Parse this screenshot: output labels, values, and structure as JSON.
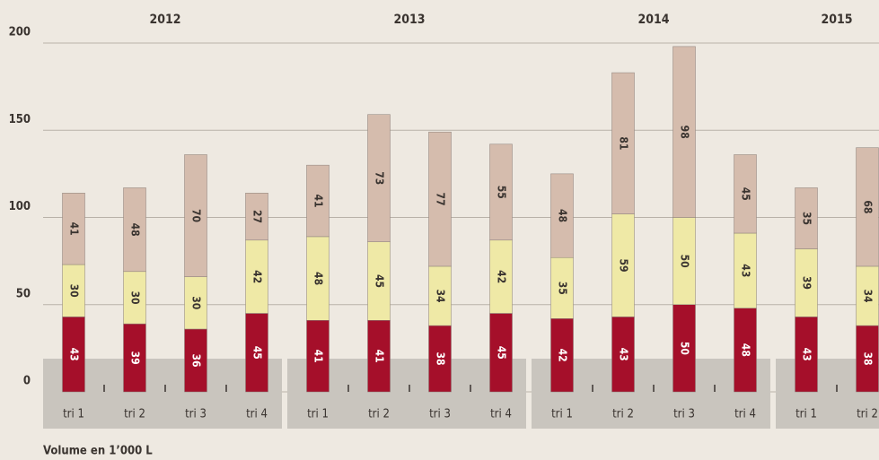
{
  "chart_data": {
    "type": "stacked_bar",
    "groups": [
      {
        "label": "2012",
        "categories": [
          "tri 1",
          "tri 2",
          "tri 3",
          "tri 4"
        ]
      },
      {
        "label": "2013",
        "categories": [
          "tri 1",
          "tri 2",
          "tri 3",
          "tri 4"
        ]
      },
      {
        "label": "2014",
        "categories": [
          "tri 1",
          "tri 2",
          "tri 3",
          "tri 4"
        ]
      },
      {
        "label": "2015",
        "categories": [
          "tri 1",
          "tri 2"
        ]
      }
    ],
    "series": [
      {
        "color": "#a50f2a",
        "values": [
          43,
          39,
          36,
          45,
          41,
          41,
          38,
          45,
          42,
          43,
          50,
          48,
          43,
          38
        ]
      },
      {
        "color": "#efe9a6",
        "values": [
          30,
          30,
          30,
          42,
          48,
          45,
          34,
          42,
          35,
          59,
          50,
          43,
          39,
          34
        ]
      },
      {
        "color": "#d5bcad",
        "values": [
          41,
          48,
          70,
          27,
          41,
          73,
          77,
          55,
          48,
          81,
          98,
          45,
          35,
          68
        ]
      }
    ],
    "ylim": [
      0,
      200
    ],
    "yticks": [
      0,
      50,
      100,
      150,
      200
    ],
    "grid": true,
    "x_label": "Volume en 1’000 L"
  }
}
